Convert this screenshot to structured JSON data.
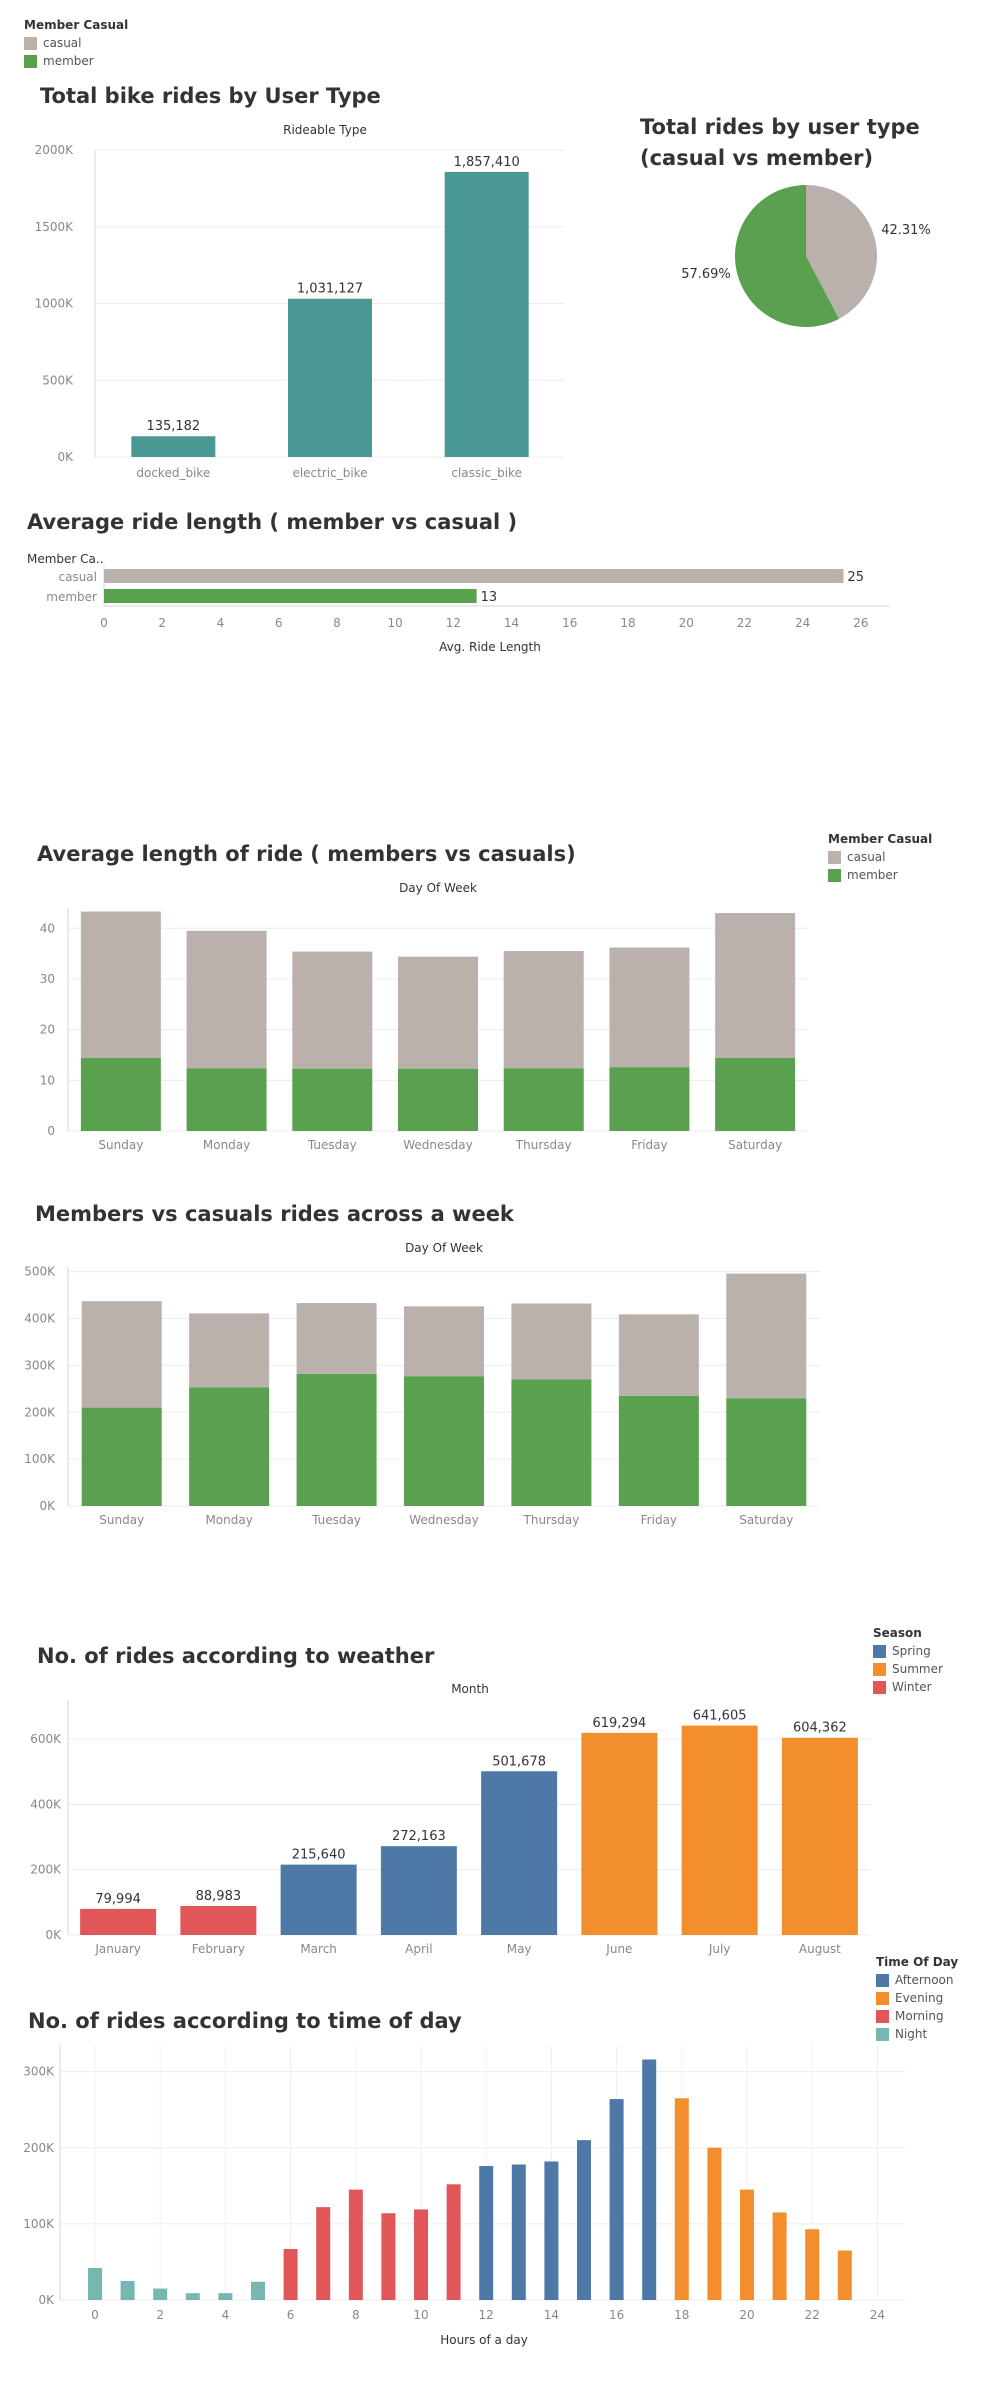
{
  "colors": {
    "casual": "#bab0ac",
    "member": "#59a14f",
    "teal": "#499894",
    "spring": "#4e79a7",
    "summer": "#f28e2b",
    "winter": "#e15759",
    "night": "#76b7b2"
  },
  "legend_user": {
    "title": "Member Casual",
    "items": [
      "casual",
      "member"
    ]
  },
  "chart_data": [
    {
      "type": "bar",
      "title": "Total bike rides by User Type",
      "subtitle": "Rideable Type",
      "categories": [
        "docked_bike",
        "electric_bike",
        "classic_bike"
      ],
      "values": [
        135182,
        1031127,
        1857410
      ],
      "labels": [
        "135,182",
        "1,031,127",
        "1,857,410"
      ],
      "yticks": [
        "0K",
        "500K",
        "1000K",
        "1500K",
        "2000K"
      ],
      "ylim": [
        0,
        2000000
      ]
    },
    {
      "type": "pie",
      "title": "Total rides by user type (casual vs member)",
      "slices": [
        {
          "name": "casual",
          "value": 42.31,
          "label": "42.31%"
        },
        {
          "name": "member",
          "value": 57.69,
          "label": "57.69%"
        }
      ]
    },
    {
      "type": "bar",
      "title": "Average ride length ( member vs casual )",
      "ylabel": "Member Ca..",
      "xlabel": "Avg. Ride Length",
      "categories": [
        "casual",
        "member"
      ],
      "values": [
        25.4,
        12.8
      ],
      "labels": [
        "25",
        "13"
      ],
      "xticks": [
        "0",
        "2",
        "4",
        "6",
        "8",
        "10",
        "12",
        "14",
        "16",
        "18",
        "20",
        "22",
        "24",
        "26"
      ],
      "xlim": [
        0,
        27
      ]
    },
    {
      "type": "bar",
      "title": "Average length of ride ( members vs casuals)",
      "subtitle": "Day Of Week",
      "categories": [
        "Sunday",
        "Monday",
        "Tuesday",
        "Wednesday",
        "Thursday",
        "Friday",
        "Saturday"
      ],
      "series": [
        {
          "name": "member",
          "values": [
            14.4,
            12.4,
            12.3,
            12.3,
            12.4,
            12.6,
            14.4
          ]
        },
        {
          "name": "casual",
          "values": [
            28.9,
            27.1,
            23.1,
            22.1,
            23.1,
            23.6,
            28.6
          ]
        }
      ],
      "yticks": [
        "0",
        "10",
        "20",
        "30",
        "40"
      ],
      "ylim": [
        0,
        44
      ]
    },
    {
      "type": "bar",
      "title": "Members vs casuals rides across a week",
      "subtitle": "Day Of Week",
      "categories": [
        "Sunday",
        "Monday",
        "Tuesday",
        "Wednesday",
        "Thursday",
        "Friday",
        "Saturday"
      ],
      "series": [
        {
          "name": "member",
          "values": [
            210000,
            253000,
            282000,
            277000,
            270000,
            235000,
            230000
          ]
        },
        {
          "name": "casual",
          "values": [
            227000,
            158000,
            151000,
            149000,
            162000,
            174000,
            266000
          ]
        }
      ],
      "yticks": [
        "0K",
        "100K",
        "200K",
        "300K",
        "400K",
        "500K"
      ],
      "ylim": [
        0,
        510000
      ]
    },
    {
      "type": "bar",
      "title": "No. of rides according to weather",
      "subtitle": "Month",
      "legend": {
        "title": "Season",
        "items": [
          "Spring",
          "Summer",
          "Winter"
        ]
      },
      "categories": [
        "January",
        "February",
        "March",
        "April",
        "May",
        "June",
        "July",
        "August"
      ],
      "values": [
        79994,
        88983,
        215640,
        272163,
        501678,
        619294,
        641605,
        604362
      ],
      "labels": [
        "79,994",
        "88,983",
        "215,640",
        "272,163",
        "501,678",
        "619,294",
        "641,605",
        "604,362"
      ],
      "season": [
        "Winter",
        "Winter",
        "Spring",
        "Spring",
        "Spring",
        "Summer",
        "Summer",
        "Summer"
      ],
      "yticks": [
        "0K",
        "200K",
        "400K",
        "600K"
      ],
      "ylim": [
        0,
        720000
      ]
    },
    {
      "type": "bar",
      "title": "No. of rides according to time of day",
      "xlabel": "Hours of a day",
      "legend": {
        "title": "Time Of Day",
        "items": [
          "Afternoon",
          "Evening",
          "Morning",
          "Night"
        ]
      },
      "x": [
        0,
        1,
        2,
        3,
        4,
        5,
        6,
        7,
        8,
        9,
        10,
        11,
        12,
        13,
        14,
        15,
        16,
        17,
        18,
        19,
        20,
        21,
        22,
        23
      ],
      "values": [
        42000,
        25000,
        15000,
        9000,
        9000,
        24000,
        67000,
        122000,
        145000,
        114000,
        119000,
        152000,
        176000,
        178000,
        182000,
        210000,
        264000,
        316000,
        265000,
        200000,
        145000,
        115000,
        93000,
        65000
      ],
      "period": [
        "Night",
        "Night",
        "Night",
        "Night",
        "Night",
        "Night",
        "Morning",
        "Morning",
        "Morning",
        "Morning",
        "Morning",
        "Morning",
        "Afternoon",
        "Afternoon",
        "Afternoon",
        "Afternoon",
        "Afternoon",
        "Afternoon",
        "Evening",
        "Evening",
        "Evening",
        "Evening",
        "Evening",
        "Evening"
      ],
      "xticks": [
        "0",
        "2",
        "4",
        "6",
        "8",
        "10",
        "12",
        "14",
        "16",
        "18",
        "20",
        "22",
        "24"
      ],
      "yticks": [
        "0K",
        "100K",
        "200K",
        "300K"
      ],
      "ylim": [
        0,
        335000
      ]
    }
  ]
}
